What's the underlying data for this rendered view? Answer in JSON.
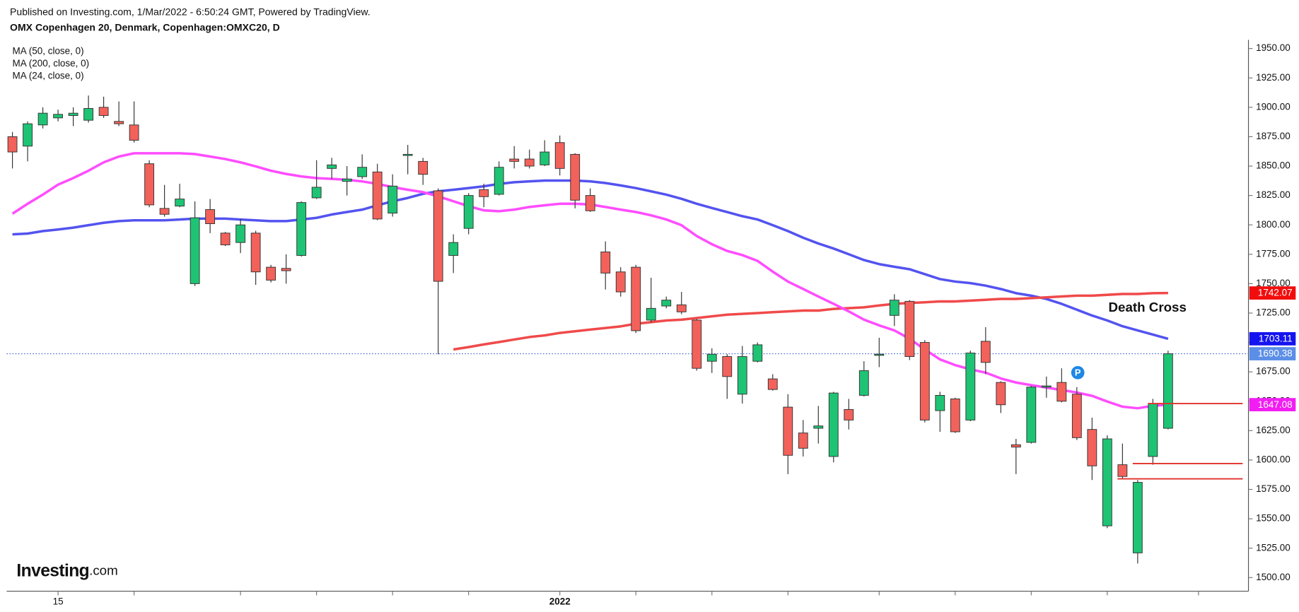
{
  "chart_data": {
    "type": "candlestick",
    "subtitle": "Published on Investing.com, 1/Mar/2022 - 6:50:24 GMT, Powered by TradingView.",
    "title": "OMX Copenhagen 20, Denmark, Copenhagen:OMXC20, D",
    "categories": [
      null,
      null,
      null,
      "15",
      null,
      null,
      null,
      null,
      null,
      null,
      null,
      null,
      null,
      null,
      null,
      null,
      null,
      null,
      null,
      null,
      null,
      null,
      null,
      null,
      null,
      null,
      null,
      null,
      null,
      null,
      null,
      null,
      null,
      null,
      null,
      null,
      "2022",
      null,
      null,
      null,
      null,
      null,
      null,
      null,
      null,
      null,
      null,
      null,
      null,
      null,
      null,
      null,
      null,
      null,
      null,
      null,
      null,
      null,
      null,
      null,
      null,
      null,
      null,
      null,
      null,
      null,
      null,
      null,
      null,
      null,
      null,
      null,
      null,
      null,
      null,
      null,
      null
    ],
    "open": [
      1875,
      1867,
      1885,
      1891,
      1893,
      1889,
      1900,
      1888,
      1885,
      1852,
      1814,
      1816,
      1750,
      1813,
      1793,
      1785,
      1793,
      1764,
      1763,
      1774,
      1823,
      1848,
      1837,
      1841,
      1845,
      1810,
      1859,
      1854,
      1829,
      1774,
      1797,
      1830,
      1826,
      1856,
      1856,
      1851,
      1870,
      1860,
      1825,
      1777,
      1760,
      1764,
      1719,
      1731,
      1732,
      1719,
      1684,
      1688,
      1656,
      1684,
      1669,
      1645,
      1623,
      1627,
      1603,
      1643,
      1655,
      1689,
      1723,
      1735,
      1700,
      1642,
      1652,
      1634,
      1701,
      1666,
      1613,
      1615,
      1662,
      1666,
      1656,
      1626,
      1544,
      1596,
      1521,
      1603,
      1627
    ],
    "high": [
      1879,
      1888,
      1900,
      1898,
      1900,
      1910,
      1909,
      1905,
      1905,
      1855,
      1834,
      1835,
      1820,
      1822,
      1794,
      1805,
      1795,
      1766,
      1775,
      1820,
      1855,
      1857,
      1850,
      1860,
      1852,
      1843,
      1868,
      1857,
      1831,
      1792,
      1827,
      1835,
      1854,
      1867,
      1864,
      1872,
      1876,
      1861,
      1831,
      1786,
      1764,
      1766,
      1755,
      1739,
      1743,
      1720,
      1695,
      1690,
      1697,
      1700,
      1673,
      1656,
      1634,
      1646,
      1658,
      1652,
      1684,
      1704,
      1741,
      1736,
      1702,
      1658,
      1653,
      1693,
      1713,
      1667,
      1618,
      1663,
      1671,
      1678,
      1662,
      1636,
      1621,
      1614,
      1583,
      1652,
      1693
    ],
    "low": [
      1848,
      1854,
      1882,
      1888,
      1884,
      1887,
      1891,
      1884,
      1870,
      1815,
      1807,
      1815,
      1748,
      1793,
      1782,
      1776,
      1749,
      1751,
      1750,
      1773,
      1822,
      1839,
      1825,
      1839,
      1804,
      1807,
      1843,
      1834,
      1690,
      1759,
      1792,
      1815,
      1825,
      1848,
      1848,
      1850,
      1842,
      1814,
      1811,
      1745,
      1739,
      1708,
      1717,
      1729,
      1724,
      1676,
      1674,
      1652,
      1648,
      1683,
      1659,
      1588,
      1603,
      1614,
      1598,
      1626,
      1654,
      1679,
      1714,
      1685,
      1632,
      1624,
      1623,
      1633,
      1673,
      1640,
      1588,
      1614,
      1653,
      1649,
      1617,
      1583,
      1542,
      1584,
      1512,
      1596,
      1626
    ],
    "close": [
      1862,
      1886,
      1895,
      1894,
      1895,
      1899,
      1893,
      1886,
      1872,
      1817,
      1809,
      1822,
      1806,
      1801,
      1783,
      1800,
      1760,
      1753,
      1761,
      1819,
      1832,
      1851,
      1839,
      1849,
      1805,
      1833,
      1860,
      1843,
      1752,
      1785,
      1825,
      1824,
      1849,
      1854,
      1850,
      1862,
      1848,
      1821,
      1812,
      1759,
      1743,
      1710,
      1729,
      1736,
      1726,
      1678,
      1690,
      1671,
      1688,
      1698,
      1660,
      1604,
      1610,
      1629,
      1657,
      1634,
      1676,
      1690,
      1736,
      1688,
      1634,
      1655,
      1624,
      1691,
      1683,
      1647,
      1611,
      1662,
      1663,
      1650,
      1619,
      1595,
      1618,
      1586,
      1581,
      1648,
      1690.38
    ],
    "up_color": "#1ec474",
    "down_color": "#f2625b",
    "series": [
      {
        "name": "MA (50, close, 0)",
        "color": "#5353f0",
        "values": [
          1791.9,
          1792.6,
          1794.7,
          1796.1,
          1797.6,
          1799.7,
          1801.8,
          1803.2,
          1803.9,
          1803.9,
          1803.9,
          1804.6,
          1805.3,
          1805.3,
          1805.3,
          1804.6,
          1803.9,
          1803.2,
          1803.2,
          1804.6,
          1806,
          1808.8,
          1810.9,
          1813,
          1816.6,
          1820.1,
          1822.9,
          1826.4,
          1828.5,
          1829.9,
          1831.3,
          1832.8,
          1834.9,
          1836.3,
          1837,
          1837.7,
          1837.7,
          1837.7,
          1837,
          1835.6,
          1833.5,
          1831.3,
          1828.5,
          1825.7,
          1822.2,
          1818,
          1814.4,
          1810.9,
          1807.4,
          1804.6,
          1799.7,
          1794.7,
          1789.1,
          1784.2,
          1779.9,
          1775,
          1770.1,
          1766.6,
          1764.4,
          1762.3,
          1758.1,
          1753.9,
          1751.8,
          1750.4,
          1748.3,
          1745.4,
          1741.9,
          1739.8,
          1737,
          1732.8,
          1727.8,
          1722.9,
          1718.7,
          1713.8,
          1710.2,
          1706.7,
          1703.11
        ]
      },
      {
        "name": "MA (200, close, 0)",
        "color": "#f04a4a",
        "values": [
          null,
          null,
          null,
          null,
          null,
          null,
          null,
          null,
          null,
          null,
          null,
          null,
          null,
          null,
          null,
          null,
          null,
          null,
          null,
          null,
          null,
          null,
          null,
          null,
          null,
          null,
          null,
          null,
          null,
          1694,
          1696.1,
          1698.3,
          1700.4,
          1702.5,
          1704.6,
          1706,
          1708.1,
          1709.5,
          1710.9,
          1712.3,
          1713.7,
          1715.9,
          1717.3,
          1718.7,
          1719.4,
          1720.8,
          1722.2,
          1723.6,
          1724.3,
          1725,
          1725.7,
          1726.4,
          1727.1,
          1727.1,
          1728.5,
          1729.2,
          1729.9,
          1731.4,
          1732.8,
          1733.5,
          1734.2,
          1734.9,
          1734.9,
          1735.6,
          1736.3,
          1737,
          1737,
          1737.7,
          1738.4,
          1739.1,
          1739.8,
          1739.8,
          1740.5,
          1741.2,
          1741.2,
          1741.9,
          1742.07
        ]
      },
      {
        "name": "MA (24, close, 0)",
        "color": "#ff4cff",
        "values": [
          1809.5,
          1818,
          1825.7,
          1834.2,
          1839.8,
          1846.1,
          1853.2,
          1858.1,
          1860.9,
          1860.9,
          1860.9,
          1860.9,
          1860.2,
          1858.1,
          1856,
          1853.2,
          1849.7,
          1846.1,
          1843.3,
          1841.2,
          1839.8,
          1839.1,
          1838.4,
          1837,
          1834.9,
          1832.1,
          1829.9,
          1827.8,
          1824.3,
          1820.1,
          1815.9,
          1812.3,
          1811.6,
          1813,
          1815.2,
          1816.6,
          1818,
          1818,
          1817.3,
          1815.2,
          1813,
          1810.9,
          1808.1,
          1804.6,
          1799.7,
          1790.5,
          1783.5,
          1777.8,
          1774.3,
          1769.4,
          1760.2,
          1751.8,
          1745.4,
          1739.1,
          1732.8,
          1726.4,
          1719.4,
          1714.5,
          1710.2,
          1703.2,
          1694,
          1685.6,
          1680.7,
          1677.1,
          1674.3,
          1669.4,
          1665.9,
          1663.7,
          1661.6,
          1659.5,
          1657.4,
          1654.6,
          1649.7,
          1645.4,
          1644,
          1646.1,
          1647.08
        ]
      }
    ],
    "ylim": [
      1488.4,
      1957.4
    ],
    "yticks": [
      {
        "value": 1500,
        "label": "1500.00"
      },
      {
        "value": 1525,
        "label": "1525.00"
      },
      {
        "value": 1550,
        "label": "1550.00"
      },
      {
        "value": 1575,
        "label": "1575.00"
      },
      {
        "value": 1600,
        "label": "1600.00"
      },
      {
        "value": 1625,
        "label": "1625.00"
      },
      {
        "value": 1650,
        "label": "1650.00"
      },
      {
        "value": 1675,
        "label": "1675.00"
      },
      {
        "value": 1700,
        "label": "1700.00"
      },
      {
        "value": 1725,
        "label": "1725.00"
      },
      {
        "value": 1750,
        "label": "1750.00"
      },
      {
        "value": 1775,
        "label": "1775.00"
      },
      {
        "value": 1800,
        "label": "1800.00"
      },
      {
        "value": 1825,
        "label": "1825.00"
      },
      {
        "value": 1850,
        "label": "1850.00"
      },
      {
        "value": 1875,
        "label": "1875.00"
      },
      {
        "value": 1900,
        "label": "1900.00"
      },
      {
        "value": 1925,
        "label": "1925.00"
      },
      {
        "value": 1950,
        "label": "1950.00"
      }
    ],
    "annotation": "Death Cross",
    "marker": "P",
    "levels": [
      {
        "value": 1648,
        "from": 75
      },
      {
        "value": 1597,
        "from": 74
      },
      {
        "value": 1584,
        "from": 73
      }
    ],
    "level_color": "#e0302a"
  },
  "logo": {
    "name": "Investing",
    "suffix": ".com"
  }
}
